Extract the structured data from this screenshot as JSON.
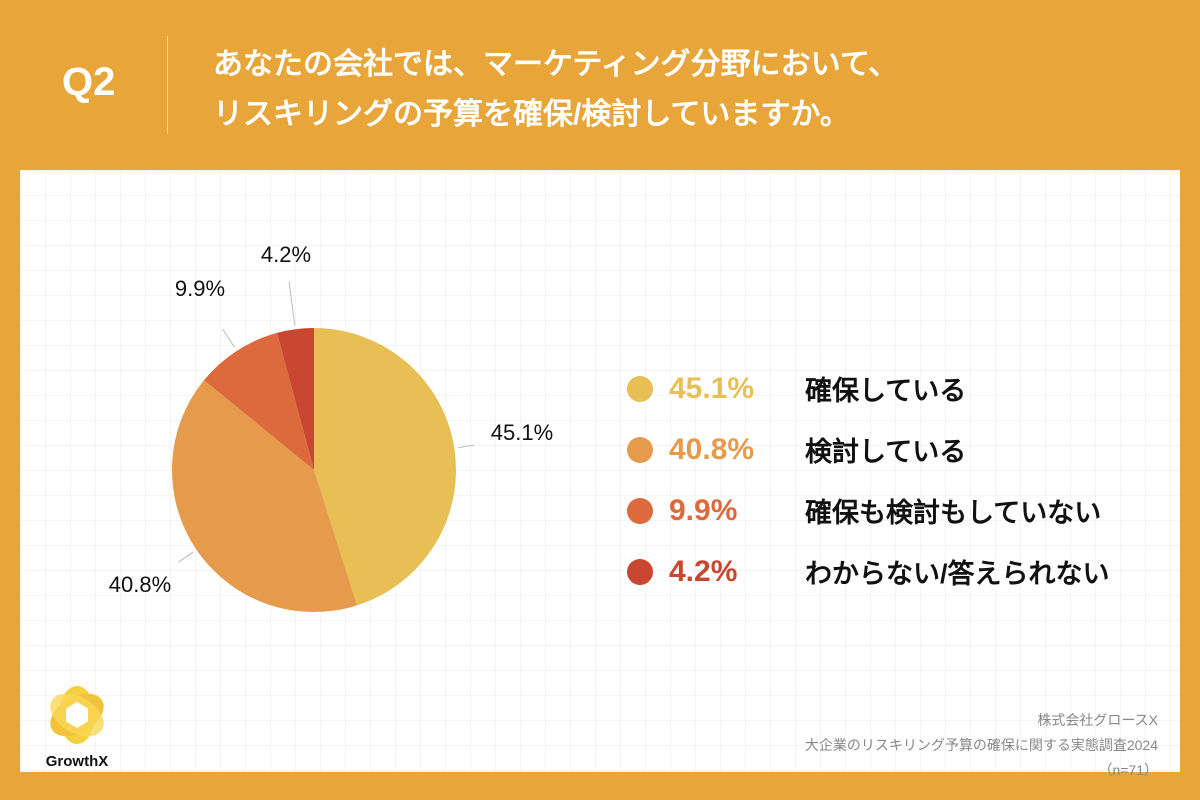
{
  "header": {
    "question": "Q2",
    "title_line1": "あなたの会社では、マーケティング分野において、",
    "title_line2": "リスキリングの予算を確保/検討していますか。"
  },
  "chart_data": {
    "type": "pie",
    "start": "top, clockwise",
    "categories": [
      "確保している",
      "検討している",
      "確保も検討もしていない",
      "わからない/答えられない"
    ],
    "values": [
      45.1,
      40.8,
      9.9,
      4.2
    ],
    "data_labels": [
      "45.1%",
      "40.8%",
      "9.9%",
      "4.2%"
    ],
    "colors": [
      "#E8BF55",
      "#E59B4B",
      "#DD6A3C",
      "#C94631"
    ],
    "legend_placement": "right"
  },
  "footer": {
    "company": "株式会社グロースX",
    "survey": "大企業のリスキリング予算の確保に関する実態調査2024",
    "sample": "（n=71）"
  },
  "logo": {
    "text": "GrowthX"
  },
  "colors": {
    "background": "#E8A53A",
    "panel": "#FFFFFF"
  }
}
